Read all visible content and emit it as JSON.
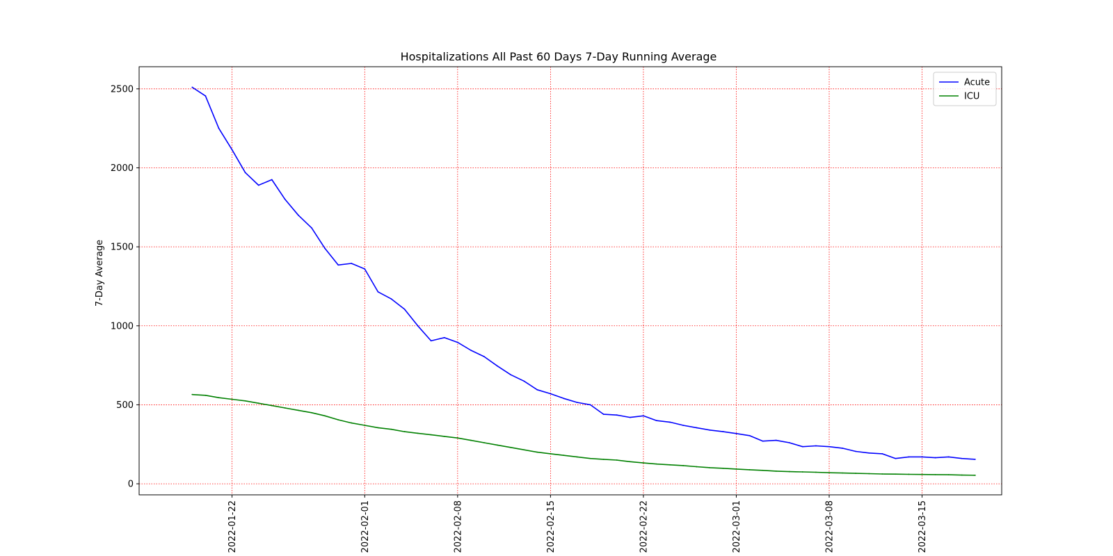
{
  "chart_data": {
    "type": "line",
    "title": "Hospitalizations All Past 60 Days 7-Day Running Average",
    "xlabel": "",
    "ylabel": "7-Day Average",
    "x_type": "date",
    "x_ticks": [
      "2022-01-22",
      "2022-02-01",
      "2022-02-08",
      "2022-02-15",
      "2022-02-22",
      "2022-03-01",
      "2022-03-08",
      "2022-03-15"
    ],
    "y_ticks": [
      0,
      500,
      1000,
      1500,
      2000,
      2500
    ],
    "xlim": [
      "2022-01-15",
      "2022-03-21"
    ],
    "ylim": [
      -70,
      2640
    ],
    "grid": true,
    "grid_color": "#ff0000",
    "legend_position": "top-right",
    "x": [
      "2022-01-19",
      "2022-01-20",
      "2022-01-21",
      "2022-01-22",
      "2022-01-23",
      "2022-01-24",
      "2022-01-25",
      "2022-01-26",
      "2022-01-27",
      "2022-01-28",
      "2022-01-29",
      "2022-01-30",
      "2022-01-31",
      "2022-02-01",
      "2022-02-02",
      "2022-02-03",
      "2022-02-04",
      "2022-02-05",
      "2022-02-06",
      "2022-02-07",
      "2022-02-08",
      "2022-02-09",
      "2022-02-10",
      "2022-02-11",
      "2022-02-12",
      "2022-02-13",
      "2022-02-14",
      "2022-02-15",
      "2022-02-16",
      "2022-02-17",
      "2022-02-18",
      "2022-02-19",
      "2022-02-20",
      "2022-02-21",
      "2022-02-22",
      "2022-02-23",
      "2022-02-24",
      "2022-02-25",
      "2022-02-26",
      "2022-02-27",
      "2022-02-28",
      "2022-03-01",
      "2022-03-02",
      "2022-03-03",
      "2022-03-04",
      "2022-03-05",
      "2022-03-06",
      "2022-03-07",
      "2022-03-08",
      "2022-03-09",
      "2022-03-10",
      "2022-03-11",
      "2022-03-12",
      "2022-03-13",
      "2022-03-14",
      "2022-03-15",
      "2022-03-16",
      "2022-03-17",
      "2022-03-18",
      "2022-03-19"
    ],
    "series": [
      {
        "name": "Acute",
        "color": "#0000ff",
        "values": [
          2510,
          2455,
          2250,
          2115,
          1970,
          1890,
          1925,
          1800,
          1700,
          1620,
          1490,
          1385,
          1395,
          1360,
          1215,
          1170,
          1105,
          1000,
          905,
          925,
          895,
          845,
          805,
          745,
          690,
          650,
          595,
          570,
          540,
          515,
          500,
          440,
          435,
          420,
          430,
          400,
          390,
          370,
          355,
          340,
          330,
          318,
          305,
          270,
          275,
          260,
          235,
          240,
          235,
          225,
          205,
          195,
          190,
          160,
          170,
          170,
          165,
          170,
          160,
          155
        ]
      },
      {
        "name": "ICU",
        "color": "#008000",
        "values": [
          565,
          560,
          545,
          535,
          525,
          510,
          495,
          480,
          465,
          450,
          430,
          405,
          385,
          370,
          355,
          345,
          330,
          320,
          310,
          300,
          290,
          275,
          260,
          245,
          230,
          215,
          200,
          190,
          180,
          170,
          160,
          155,
          150,
          140,
          132,
          125,
          120,
          115,
          108,
          102,
          98,
          93,
          89,
          85,
          80,
          77,
          75,
          73,
          70,
          68,
          66,
          64,
          62,
          61,
          60,
          59,
          58,
          57,
          55,
          54
        ]
      }
    ]
  }
}
